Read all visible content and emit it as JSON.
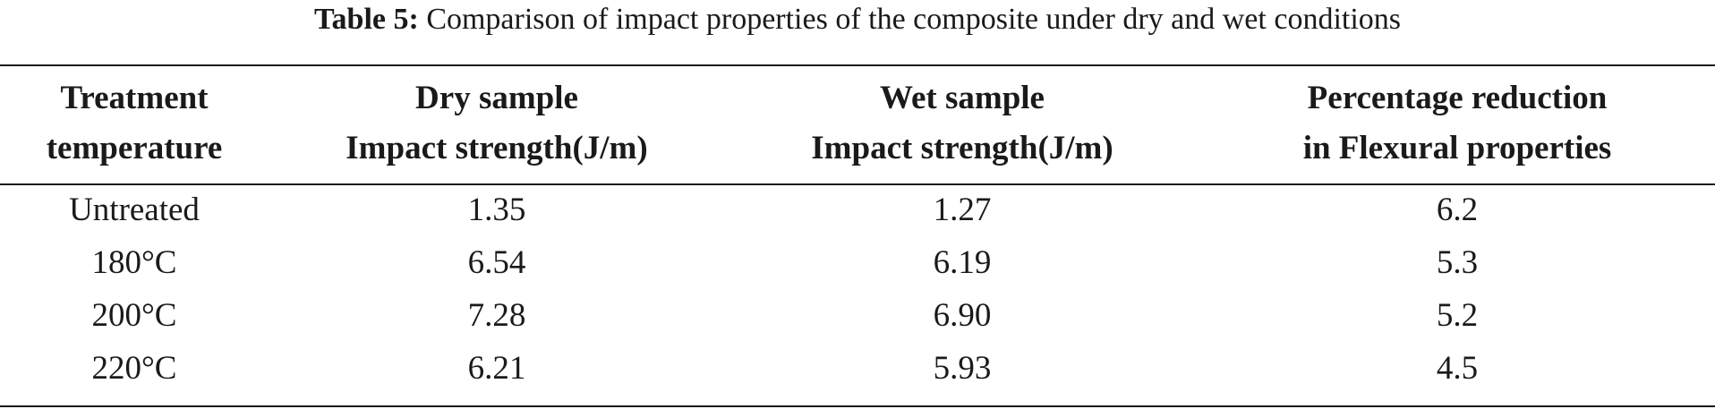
{
  "caption": {
    "label": "Table 5:",
    "text": "Comparison of impact properties of the composite under dry and wet conditions"
  },
  "table": {
    "headers": [
      [
        "Treatment",
        "temperature"
      ],
      [
        "Dry sample",
        "Impact strength(J/m)"
      ],
      [
        "Wet sample",
        "Impact strength(J/m)"
      ],
      [
        "Percentage reduction",
        "in Flexural properties"
      ]
    ],
    "rows": [
      [
        "Untreated",
        "1.35",
        "1.27",
        "6.2"
      ],
      [
        "180°C",
        "6.54",
        "6.19",
        "5.3"
      ],
      [
        "200°C",
        "7.28",
        "6.90",
        "5.2"
      ],
      [
        "220°C",
        "6.21",
        "5.93",
        "4.5"
      ]
    ]
  }
}
